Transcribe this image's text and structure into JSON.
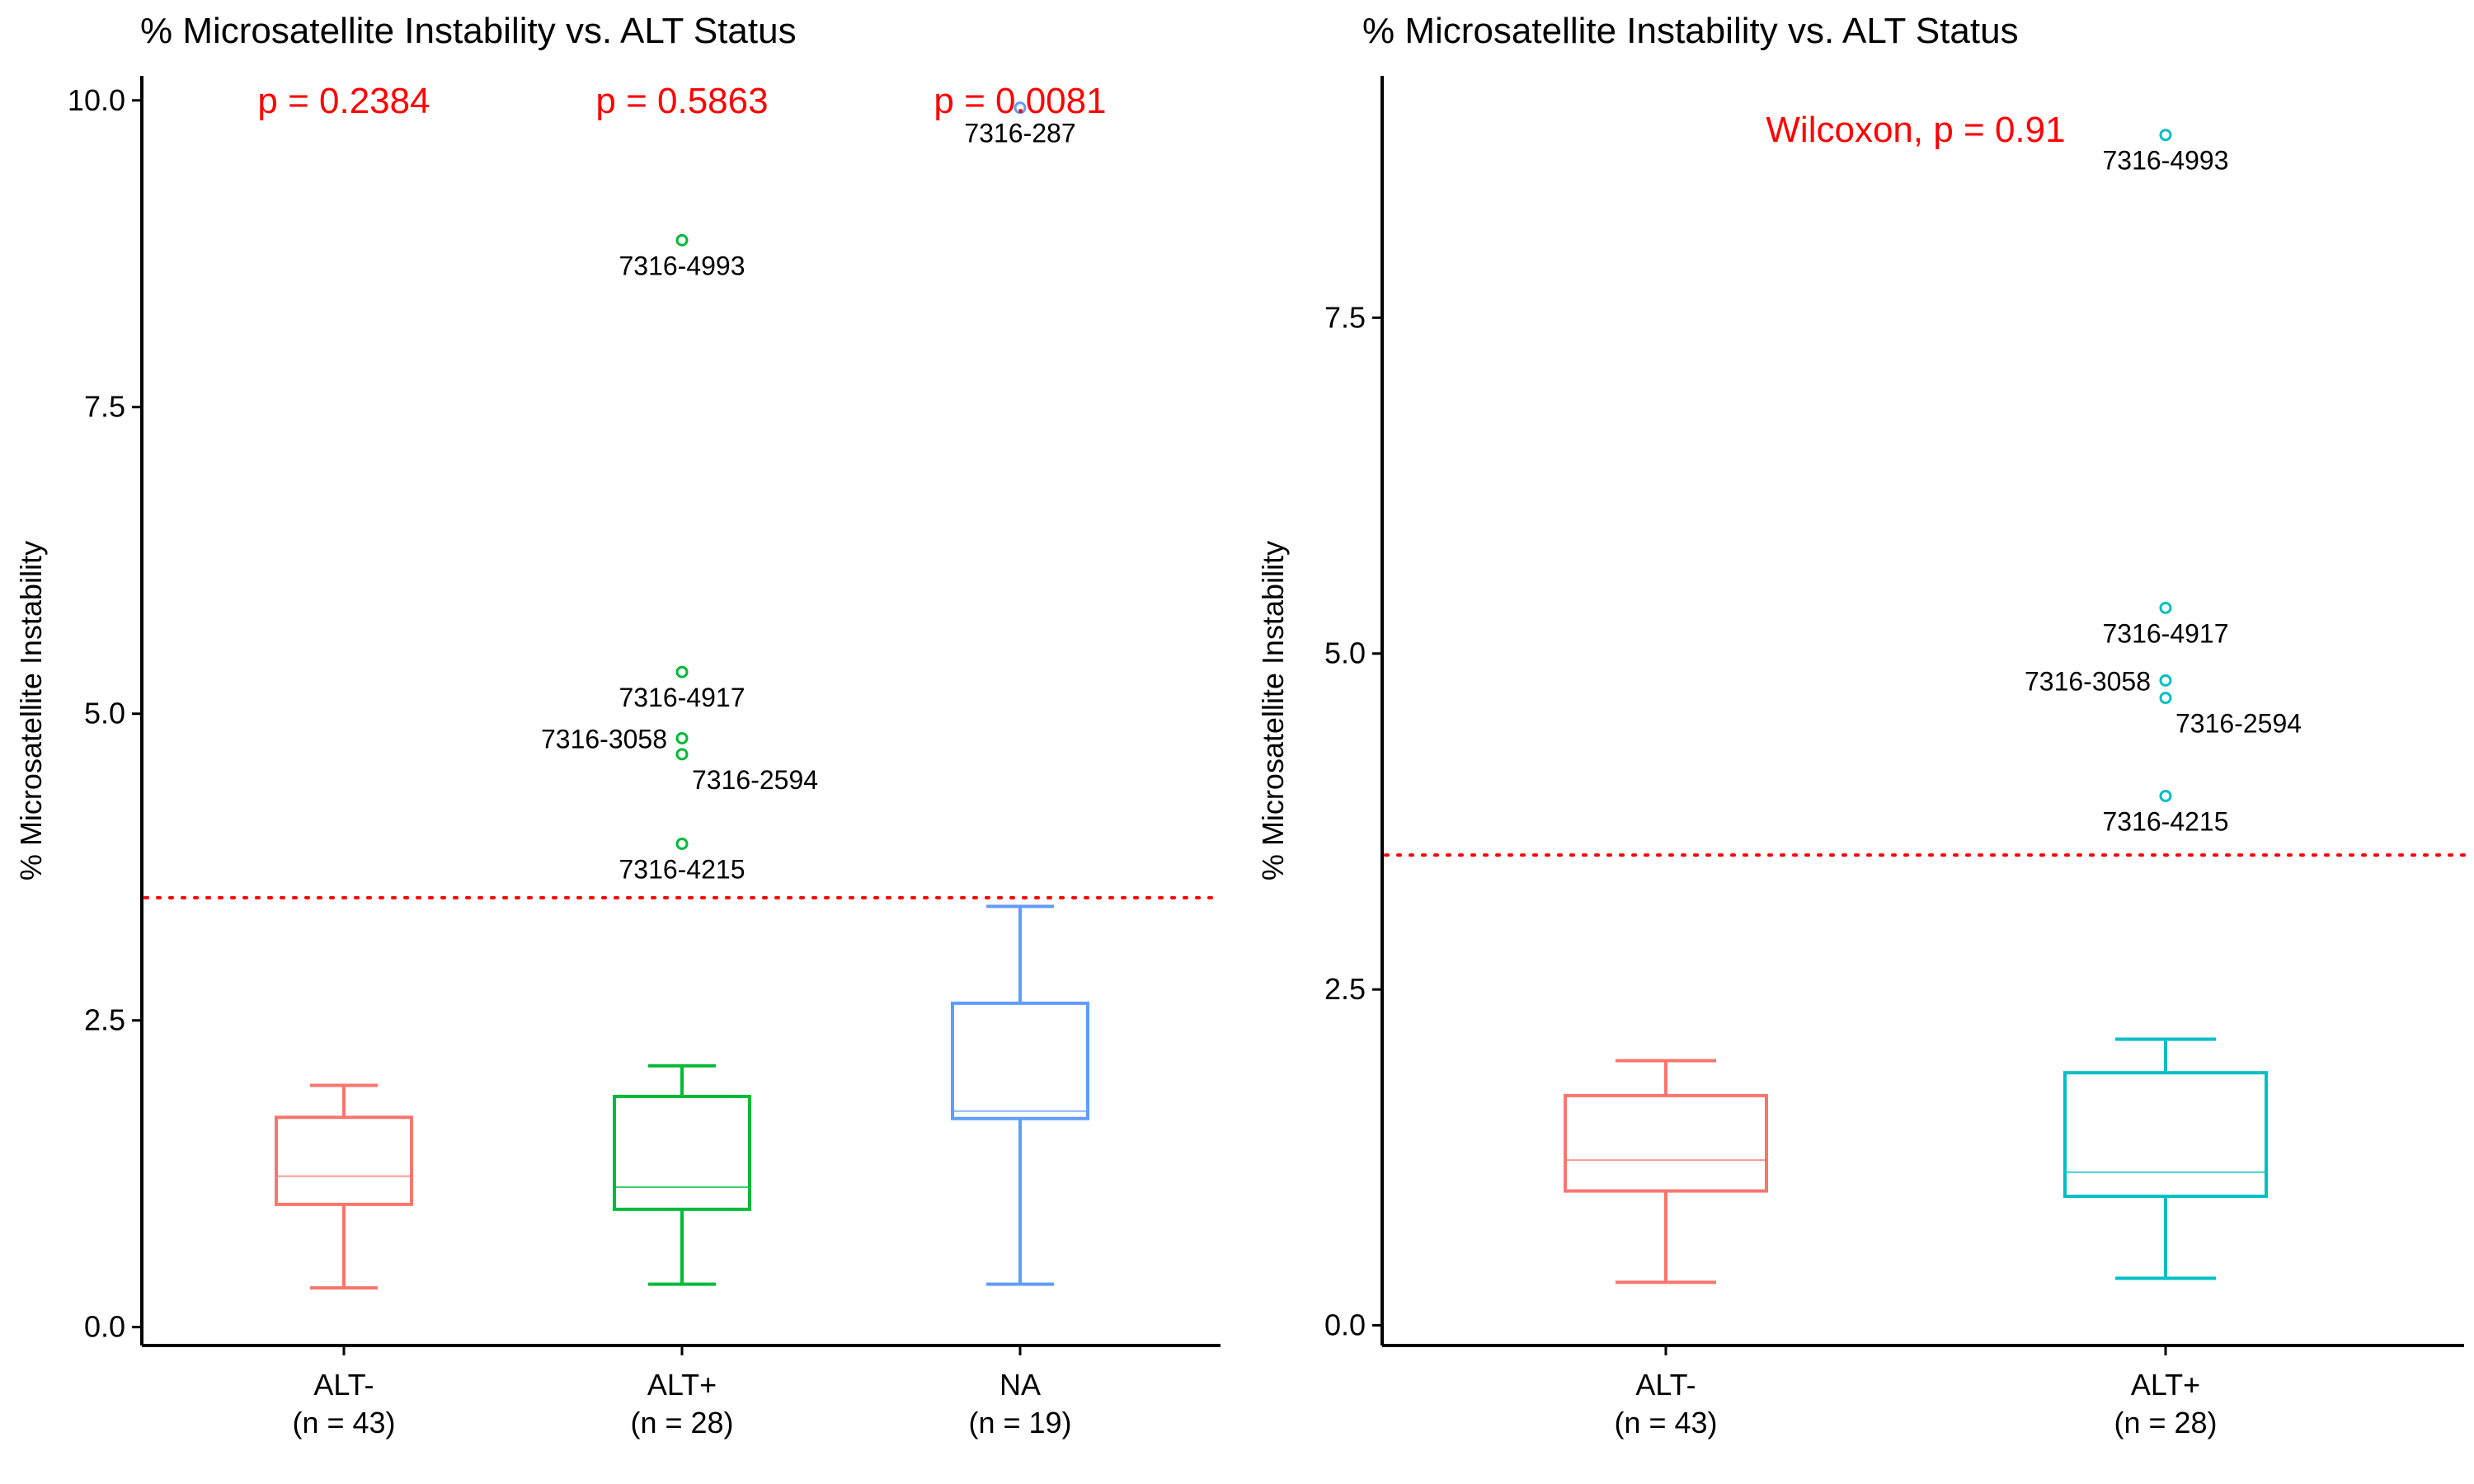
{
  "chart_data": [
    {
      "type": "box",
      "title": "% Microsatellite Instability vs. ALT Status",
      "ylabel": "% Microsatellite Instability",
      "xlabel": "",
      "ylim": [
        -0.15,
        10.2
      ],
      "yticks": [
        0.0,
        2.5,
        5.0,
        7.5,
        10.0
      ],
      "ytick_labels": [
        "0.0",
        "2.5",
        "5.0",
        "7.5",
        "10.0"
      ],
      "grid": false,
      "legend": "none",
      "threshold": {
        "y": 3.5,
        "color": "#FF0000",
        "style": "dotted"
      },
      "groups": [
        {
          "name": "ALT-",
          "count_label": "(n = 43)",
          "color": "#F8766D",
          "whisker_low": 0.32,
          "q1": 1.0,
          "median": 1.23,
          "q3": 1.71,
          "whisker_high": 1.97,
          "outliers": []
        },
        {
          "name": "ALT+",
          "count_label": "(n = 28)",
          "color": "#00BA38",
          "whisker_low": 0.35,
          "q1": 0.96,
          "median": 1.14,
          "q3": 1.88,
          "whisker_high": 2.13,
          "outliers": [
            {
              "y": 8.86,
              "label": "7316-4993",
              "anchor": "below"
            },
            {
              "y": 5.34,
              "label": "7316-4917",
              "anchor": "below"
            },
            {
              "y": 4.8,
              "label": "7316-3058",
              "anchor": "left"
            },
            {
              "y": 4.67,
              "label": "7316-2594",
              "anchor": "below-right"
            },
            {
              "y": 3.94,
              "label": "7316-4215",
              "anchor": "below"
            }
          ]
        },
        {
          "name": "NA",
          "count_label": "(n = 19)",
          "color": "#619CFF",
          "whisker_low": 0.35,
          "q1": 1.7,
          "median": 1.76,
          "q3": 2.64,
          "whisker_high": 3.43,
          "outliers": [
            {
              "y": 9.94,
              "label": "7316-287",
              "anchor": "below"
            }
          ]
        }
      ],
      "annotations": [
        {
          "text": "p = 0.2384",
          "group": 0,
          "y": 10.0,
          "color": "#FF0000"
        },
        {
          "text": "p = 0.5863",
          "group": 1,
          "y": 10.0,
          "color": "#FF0000"
        },
        {
          "text": "p = 0.0081",
          "group": 2,
          "y": 10.0,
          "color": "#FF0000"
        }
      ]
    },
    {
      "type": "box",
      "title": "% Microsatellite Instability vs. ALT Status",
      "ylabel": "% Microsatellite Instability",
      "xlabel": "",
      "ylim": [
        -0.15,
        9.3
      ],
      "yticks": [
        0.0,
        2.5,
        5.0,
        7.5
      ],
      "ytick_labels": [
        "0.0",
        "2.5",
        "5.0",
        "7.5"
      ],
      "grid": false,
      "legend": "none",
      "threshold": {
        "y": 3.5,
        "color": "#FF0000",
        "style": "dotted"
      },
      "groups": [
        {
          "name": "ALT-",
          "count_label": "(n = 43)",
          "color": "#F8766D",
          "whisker_low": 0.32,
          "q1": 1.0,
          "median": 1.23,
          "q3": 1.71,
          "whisker_high": 1.97,
          "outliers": []
        },
        {
          "name": "ALT+",
          "count_label": "(n = 28)",
          "color": "#00BFC4",
          "whisker_low": 0.35,
          "q1": 0.96,
          "median": 1.14,
          "q3": 1.88,
          "whisker_high": 2.13,
          "outliers": [
            {
              "y": 8.86,
              "label": "7316-4993",
              "anchor": "below"
            },
            {
              "y": 5.34,
              "label": "7316-4917",
              "anchor": "below"
            },
            {
              "y": 4.8,
              "label": "7316-3058",
              "anchor": "left"
            },
            {
              "y": 4.67,
              "label": "7316-2594",
              "anchor": "below-right"
            },
            {
              "y": 3.94,
              "label": "7316-4215",
              "anchor": "below"
            }
          ]
        }
      ],
      "annotations": [
        {
          "text": "Wilcoxon, p = 0.91",
          "group": 0.5,
          "y": 8.9,
          "color": "#FF0000"
        }
      ]
    }
  ]
}
